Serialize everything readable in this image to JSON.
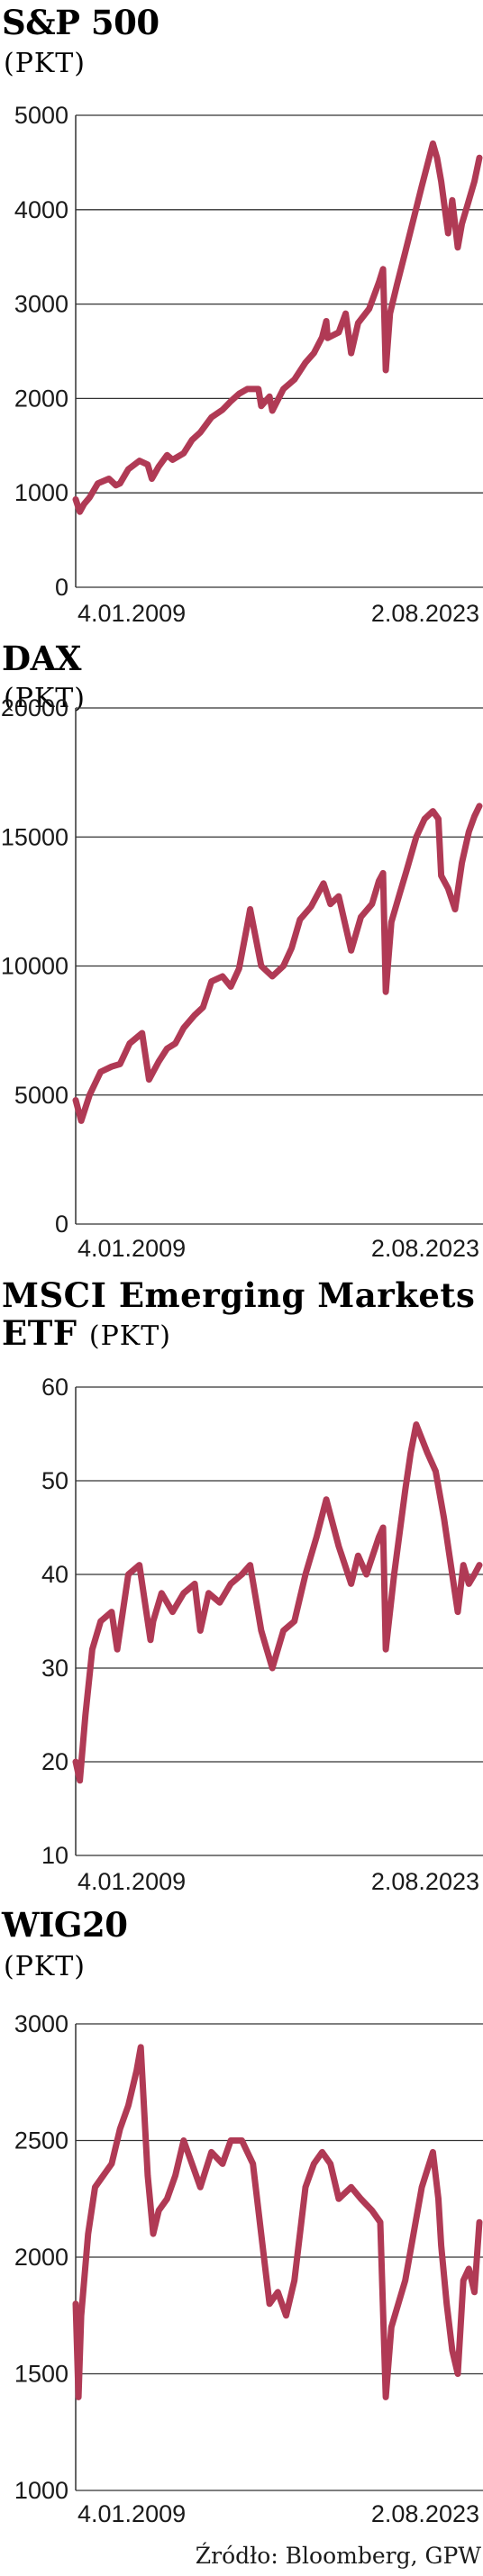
{
  "line_color": "#b03a55",
  "grid_color": "#333333",
  "source": "Źródło: Bloomberg, GPW",
  "chart_data": [
    {
      "type": "line",
      "title": "S&P 500",
      "unit": "(PKT)",
      "ylim": [
        0,
        5000
      ],
      "yticks": [
        "0",
        "1000",
        "2000",
        "3000",
        "4000",
        "5000"
      ],
      "x_start_label": "4.01.2009",
      "x_end_label": "2.08.2023",
      "series": [
        {
          "x": [
            2009.0,
            2009.15,
            2009.3,
            2009.5,
            2009.8,
            2010.2,
            2010.45,
            2010.6,
            2010.9,
            2011.3,
            2011.6,
            2011.75,
            2012.0,
            2012.3,
            2012.5,
            2012.9,
            2013.2,
            2013.5,
            2013.9,
            2014.3,
            2014.6,
            2014.9,
            2015.2,
            2015.6,
            2015.7,
            2016.0,
            2016.1,
            2016.5,
            2016.9,
            2017.3,
            2017.6,
            2017.9,
            2018.05,
            2018.1,
            2018.5,
            2018.75,
            2018.95,
            2019.2,
            2019.6,
            2019.95,
            2020.1,
            2020.2,
            2020.35,
            2020.6,
            2020.9,
            2021.2,
            2021.5,
            2021.9,
            2022.05,
            2022.2,
            2022.45,
            2022.6,
            2022.8,
            2022.95,
            2023.15,
            2023.4,
            2023.58
          ],
          "values": [
            930,
            800,
            880,
            950,
            1100,
            1150,
            1080,
            1100,
            1250,
            1340,
            1300,
            1150,
            1280,
            1400,
            1350,
            1420,
            1560,
            1640,
            1800,
            1880,
            1970,
            2050,
            2100,
            2100,
            1920,
            2020,
            1870,
            2100,
            2200,
            2380,
            2480,
            2650,
            2820,
            2640,
            2700,
            2900,
            2480,
            2800,
            2950,
            3230,
            3370,
            2300,
            2900,
            3200,
            3550,
            3900,
            4250,
            4700,
            4550,
            4300,
            3750,
            4100,
            3600,
            3850,
            4050,
            4300,
            4550
          ]
        }
      ]
    },
    {
      "type": "line",
      "title": "DAX",
      "unit": "(PKT)",
      "ylim": [
        0,
        20000
      ],
      "yticks": [
        "0",
        "5000",
        "10000",
        "15000",
        "20000"
      ],
      "x_start_label": "4.01.2009",
      "x_end_label": "2.08.2023",
      "series": [
        {
          "x": [
            2009.0,
            2009.2,
            2009.5,
            2009.9,
            2010.3,
            2010.6,
            2010.95,
            2011.4,
            2011.65,
            2011.8,
            2012.0,
            2012.3,
            2012.6,
            2012.9,
            2013.3,
            2013.6,
            2013.9,
            2014.3,
            2014.6,
            2014.9,
            2015.2,
            2015.3,
            2015.7,
            2016.1,
            2016.5,
            2016.8,
            2017.1,
            2017.5,
            2017.95,
            2018.2,
            2018.5,
            2018.95,
            2019.3,
            2019.7,
            2019.95,
            2020.1,
            2020.2,
            2020.4,
            2020.7,
            2020.95,
            2021.3,
            2021.6,
            2021.9,
            2022.1,
            2022.2,
            2022.45,
            2022.7,
            2022.95,
            2023.2,
            2023.4,
            2023.58
          ],
          "values": [
            4800,
            4000,
            5000,
            5900,
            6100,
            6200,
            7000,
            7400,
            5600,
            5900,
            6300,
            6800,
            7000,
            7600,
            8100,
            8400,
            9400,
            9600,
            9200,
            9900,
            11600,
            12200,
            10000,
            9600,
            10000,
            10700,
            11800,
            12300,
            13200,
            12400,
            12700,
            10600,
            11900,
            12400,
            13300,
            13600,
            9000,
            11700,
            12800,
            13700,
            15000,
            15700,
            16000,
            15700,
            13500,
            13000,
            12200,
            14000,
            15200,
            15800,
            16200
          ]
        }
      ]
    },
    {
      "type": "line",
      "title": "MSCI Emerging Markets",
      "title_line2": "ETF",
      "unit": "(PKT)",
      "ylim": [
        10,
        60
      ],
      "yticks": [
        "10",
        "20",
        "30",
        "40",
        "50",
        "60"
      ],
      "x_start_label": "4.01.2009",
      "x_end_label": "2.08.2023",
      "series": [
        {
          "x": [
            2009.0,
            2009.15,
            2009.35,
            2009.6,
            2009.9,
            2010.3,
            2010.5,
            2010.9,
            2011.3,
            2011.7,
            2011.8,
            2012.1,
            2012.5,
            2012.9,
            2013.3,
            2013.5,
            2013.8,
            2014.2,
            2014.6,
            2015.0,
            2015.3,
            2015.7,
            2015.9,
            2016.1,
            2016.5,
            2016.9,
            2017.3,
            2017.7,
            2018.05,
            2018.5,
            2018.95,
            2019.2,
            2019.5,
            2019.95,
            2020.1,
            2020.2,
            2020.5,
            2020.9,
            2021.1,
            2021.3,
            2021.7,
            2022.0,
            2022.3,
            2022.5,
            2022.8,
            2023.0,
            2023.2,
            2023.4,
            2023.58
          ],
          "values": [
            20,
            18,
            25,
            32,
            35,
            36,
            32,
            40,
            41,
            33,
            35,
            38,
            36,
            38,
            39,
            34,
            38,
            37,
            39,
            40,
            41,
            34,
            32,
            30,
            34,
            35,
            40,
            44,
            48,
            43,
            39,
            42,
            40,
            44,
            45,
            32,
            40,
            49,
            53,
            56,
            53,
            51,
            46,
            42,
            36,
            41,
            39,
            40,
            41
          ]
        }
      ]
    },
    {
      "type": "line",
      "title": "WIG20",
      "unit": "(PKT)",
      "ylim": [
        1000,
        3000
      ],
      "yticks": [
        "1000",
        "1500",
        "2000",
        "2500",
        "3000"
      ],
      "x_start_label": "4.01.2009",
      "x_end_label": "2.08.2023",
      "series": [
        {
          "x": [
            2009.0,
            2009.1,
            2009.2,
            2009.45,
            2009.7,
            2010.0,
            2010.3,
            2010.6,
            2010.9,
            2011.2,
            2011.35,
            2011.6,
            2011.8,
            2012.0,
            2012.3,
            2012.6,
            2012.9,
            2013.2,
            2013.5,
            2013.9,
            2014.3,
            2014.6,
            2015.0,
            2015.4,
            2015.8,
            2016.0,
            2016.3,
            2016.6,
            2016.9,
            2017.3,
            2017.6,
            2017.9,
            2018.2,
            2018.5,
            2018.95,
            2019.3,
            2019.7,
            2020.0,
            2020.2,
            2020.4,
            2020.9,
            2021.2,
            2021.5,
            2021.9,
            2022.1,
            2022.2,
            2022.4,
            2022.6,
            2022.8,
            2023.0,
            2023.2,
            2023.4,
            2023.58
          ],
          "values": [
            1800,
            1400,
            1750,
            2100,
            2300,
            2350,
            2400,
            2550,
            2650,
            2800,
            2900,
            2350,
            2100,
            2200,
            2250,
            2350,
            2500,
            2400,
            2300,
            2450,
            2400,
            2500,
            2500,
            2400,
            2000,
            1800,
            1850,
            1750,
            1900,
            2300,
            2400,
            2450,
            2400,
            2250,
            2300,
            2250,
            2200,
            2150,
            1400,
            1700,
            1900,
            2100,
            2300,
            2450,
            2250,
            2050,
            1800,
            1600,
            1500,
            1900,
            1950,
            1850,
            2150
          ]
        }
      ]
    }
  ]
}
